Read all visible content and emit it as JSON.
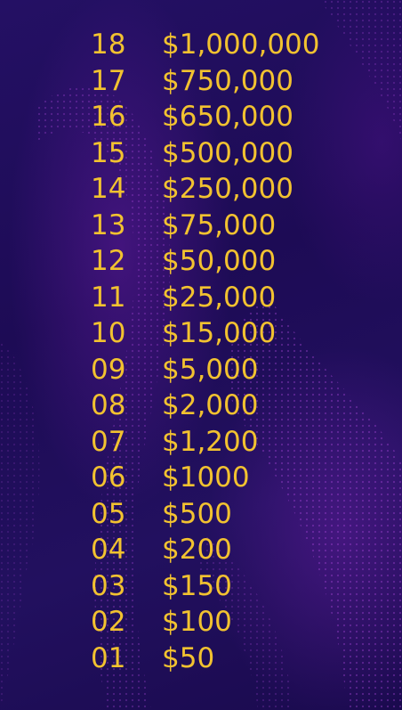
{
  "money_ladder": {
    "text_color": "#f2c230",
    "rungs": [
      {
        "number": "18",
        "amount": "$1,000,000"
      },
      {
        "number": "17",
        "amount": "$750,000"
      },
      {
        "number": "16",
        "amount": "$650,000"
      },
      {
        "number": "15",
        "amount": "$500,000"
      },
      {
        "number": "14",
        "amount": "$250,000"
      },
      {
        "number": "13",
        "amount": "$75,000"
      },
      {
        "number": "12",
        "amount": "$50,000"
      },
      {
        "number": "11",
        "amount": "$25,000"
      },
      {
        "number": "10",
        "amount": "$15,000"
      },
      {
        "number": "09",
        "amount": "$5,000"
      },
      {
        "number": "08",
        "amount": "$2,000"
      },
      {
        "number": "07",
        "amount": "$1,200"
      },
      {
        "number": "06",
        "amount": "$1000"
      },
      {
        "number": "05",
        "amount": "$500"
      },
      {
        "number": "04",
        "amount": "$200"
      },
      {
        "number": "03",
        "amount": "$150"
      },
      {
        "number": "02",
        "amount": "$100"
      },
      {
        "number": "01",
        "amount": "$50"
      }
    ]
  },
  "background": {
    "base_color": "#1f0c58",
    "wave_color": "#8a2bd6"
  }
}
